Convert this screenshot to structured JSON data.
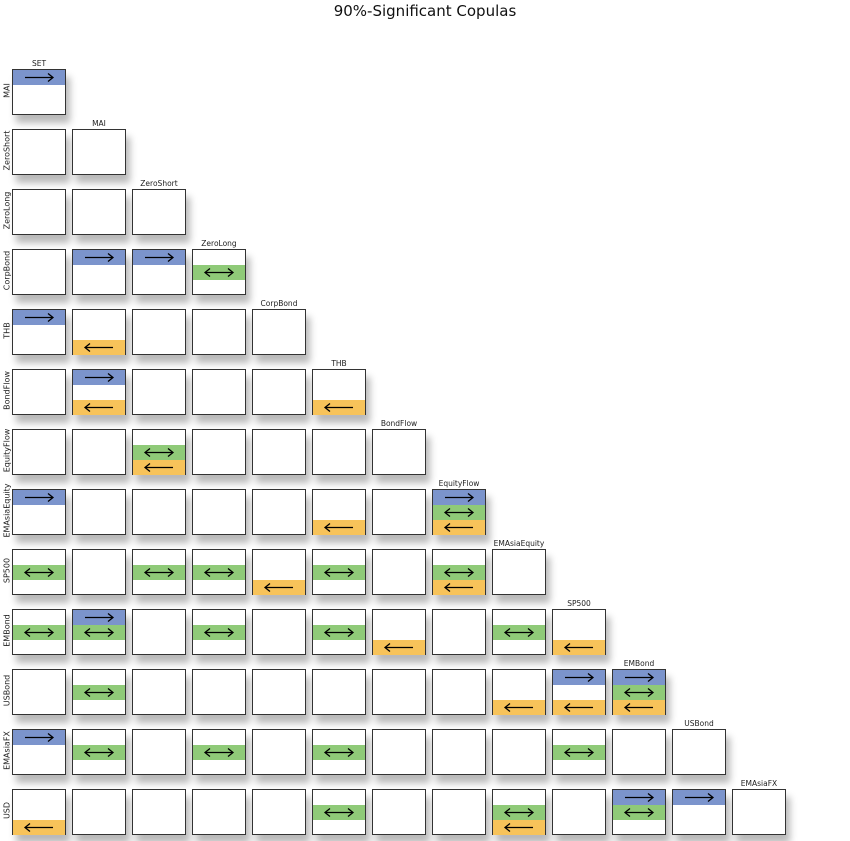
{
  "title": "90%-Significant Copulas",
  "columns": [
    "SET",
    "MAI",
    "ZeroShort",
    "ZeroLong",
    "CorpBond",
    "THB",
    "BondFlow",
    "EquityFlow",
    "EMAsiaEquity",
    "SP500",
    "EMBond",
    "USBond",
    "EMAsiaFX"
  ],
  "rows": [
    "MAI",
    "ZeroShort",
    "ZeroLong",
    "CorpBond",
    "THB",
    "BondFlow",
    "EquityFlow",
    "EMAsiaEquity",
    "SP500",
    "EMBond",
    "USBond",
    "EMAsiaFX",
    "USD"
  ],
  "colors": {
    "upper": "#7b94cc",
    "symmetric": "#8fca78",
    "lower": "#f7c35a",
    "border": "#333333"
  },
  "cells": [
    {
      "row": 0,
      "col": 0,
      "bands": [
        "upper"
      ]
    },
    {
      "row": 1,
      "col": 0,
      "bands": []
    },
    {
      "row": 1,
      "col": 1,
      "bands": []
    },
    {
      "row": 2,
      "col": 0,
      "bands": []
    },
    {
      "row": 2,
      "col": 1,
      "bands": []
    },
    {
      "row": 2,
      "col": 2,
      "bands": []
    },
    {
      "row": 3,
      "col": 0,
      "bands": []
    },
    {
      "row": 3,
      "col": 1,
      "bands": [
        "upper"
      ]
    },
    {
      "row": 3,
      "col": 2,
      "bands": [
        "upper"
      ]
    },
    {
      "row": 3,
      "col": 3,
      "bands": [
        "symmetric"
      ]
    },
    {
      "row": 4,
      "col": 0,
      "bands": [
        "upper"
      ]
    },
    {
      "row": 4,
      "col": 1,
      "bands": [
        "lower"
      ]
    },
    {
      "row": 4,
      "col": 2,
      "bands": []
    },
    {
      "row": 4,
      "col": 3,
      "bands": []
    },
    {
      "row": 4,
      "col": 4,
      "bands": []
    },
    {
      "row": 5,
      "col": 0,
      "bands": []
    },
    {
      "row": 5,
      "col": 1,
      "bands": [
        "upper",
        "lower"
      ]
    },
    {
      "row": 5,
      "col": 2,
      "bands": []
    },
    {
      "row": 5,
      "col": 3,
      "bands": []
    },
    {
      "row": 5,
      "col": 4,
      "bands": []
    },
    {
      "row": 5,
      "col": 5,
      "bands": [
        "lower"
      ]
    },
    {
      "row": 6,
      "col": 0,
      "bands": []
    },
    {
      "row": 6,
      "col": 1,
      "bands": []
    },
    {
      "row": 6,
      "col": 2,
      "bands": [
        "symmetric",
        "lower"
      ]
    },
    {
      "row": 6,
      "col": 3,
      "bands": []
    },
    {
      "row": 6,
      "col": 4,
      "bands": []
    },
    {
      "row": 6,
      "col": 5,
      "bands": []
    },
    {
      "row": 6,
      "col": 6,
      "bands": []
    },
    {
      "row": 7,
      "col": 0,
      "bands": [
        "upper"
      ]
    },
    {
      "row": 7,
      "col": 1,
      "bands": []
    },
    {
      "row": 7,
      "col": 2,
      "bands": []
    },
    {
      "row": 7,
      "col": 3,
      "bands": []
    },
    {
      "row": 7,
      "col": 4,
      "bands": []
    },
    {
      "row": 7,
      "col": 5,
      "bands": [
        "lower"
      ]
    },
    {
      "row": 7,
      "col": 6,
      "bands": []
    },
    {
      "row": 7,
      "col": 7,
      "bands": [
        "upper",
        "symmetric",
        "lower"
      ]
    },
    {
      "row": 8,
      "col": 0,
      "bands": [
        "symmetric"
      ]
    },
    {
      "row": 8,
      "col": 1,
      "bands": []
    },
    {
      "row": 8,
      "col": 2,
      "bands": [
        "symmetric"
      ]
    },
    {
      "row": 8,
      "col": 3,
      "bands": [
        "symmetric"
      ]
    },
    {
      "row": 8,
      "col": 4,
      "bands": [
        "lower"
      ]
    },
    {
      "row": 8,
      "col": 5,
      "bands": [
        "symmetric"
      ]
    },
    {
      "row": 8,
      "col": 6,
      "bands": []
    },
    {
      "row": 8,
      "col": 7,
      "bands": [
        "symmetric",
        "lower"
      ]
    },
    {
      "row": 8,
      "col": 8,
      "bands": []
    },
    {
      "row": 9,
      "col": 0,
      "bands": [
        "symmetric"
      ]
    },
    {
      "row": 9,
      "col": 1,
      "bands": [
        "upper",
        "symmetric"
      ]
    },
    {
      "row": 9,
      "col": 2,
      "bands": []
    },
    {
      "row": 9,
      "col": 3,
      "bands": [
        "symmetric"
      ]
    },
    {
      "row": 9,
      "col": 4,
      "bands": []
    },
    {
      "row": 9,
      "col": 5,
      "bands": [
        "symmetric"
      ]
    },
    {
      "row": 9,
      "col": 6,
      "bands": [
        "lower"
      ]
    },
    {
      "row": 9,
      "col": 7,
      "bands": []
    },
    {
      "row": 9,
      "col": 8,
      "bands": [
        "symmetric"
      ]
    },
    {
      "row": 9,
      "col": 9,
      "bands": [
        "lower"
      ]
    },
    {
      "row": 10,
      "col": 0,
      "bands": []
    },
    {
      "row": 10,
      "col": 1,
      "bands": [
        "symmetric"
      ]
    },
    {
      "row": 10,
      "col": 2,
      "bands": []
    },
    {
      "row": 10,
      "col": 3,
      "bands": []
    },
    {
      "row": 10,
      "col": 4,
      "bands": []
    },
    {
      "row": 10,
      "col": 5,
      "bands": []
    },
    {
      "row": 10,
      "col": 6,
      "bands": []
    },
    {
      "row": 10,
      "col": 7,
      "bands": []
    },
    {
      "row": 10,
      "col": 8,
      "bands": [
        "lower"
      ]
    },
    {
      "row": 10,
      "col": 9,
      "bands": [
        "upper",
        "lower"
      ]
    },
    {
      "row": 10,
      "col": 10,
      "bands": [
        "upper",
        "symmetric",
        "lower"
      ]
    },
    {
      "row": 11,
      "col": 0,
      "bands": [
        "upper"
      ]
    },
    {
      "row": 11,
      "col": 1,
      "bands": [
        "symmetric"
      ]
    },
    {
      "row": 11,
      "col": 2,
      "bands": []
    },
    {
      "row": 11,
      "col": 3,
      "bands": [
        "symmetric"
      ]
    },
    {
      "row": 11,
      "col": 4,
      "bands": []
    },
    {
      "row": 11,
      "col": 5,
      "bands": [
        "symmetric"
      ]
    },
    {
      "row": 11,
      "col": 6,
      "bands": []
    },
    {
      "row": 11,
      "col": 7,
      "bands": []
    },
    {
      "row": 11,
      "col": 8,
      "bands": []
    },
    {
      "row": 11,
      "col": 9,
      "bands": [
        "symmetric"
      ]
    },
    {
      "row": 11,
      "col": 10,
      "bands": []
    },
    {
      "row": 11,
      "col": 11,
      "bands": []
    },
    {
      "row": 12,
      "col": 0,
      "bands": [
        "lower"
      ]
    },
    {
      "row": 12,
      "col": 1,
      "bands": []
    },
    {
      "row": 12,
      "col": 2,
      "bands": []
    },
    {
      "row": 12,
      "col": 3,
      "bands": []
    },
    {
      "row": 12,
      "col": 4,
      "bands": []
    },
    {
      "row": 12,
      "col": 5,
      "bands": [
        "symmetric"
      ]
    },
    {
      "row": 12,
      "col": 6,
      "bands": []
    },
    {
      "row": 12,
      "col": 7,
      "bands": []
    },
    {
      "row": 12,
      "col": 8,
      "bands": [
        "symmetric",
        "lower"
      ]
    },
    {
      "row": 12,
      "col": 9,
      "bands": []
    },
    {
      "row": 12,
      "col": 10,
      "bands": [
        "upper",
        "symmetric"
      ]
    },
    {
      "row": 12,
      "col": 11,
      "bands": [
        "upper"
      ]
    },
    {
      "row": 12,
      "col": 12,
      "bands": []
    }
  ]
}
